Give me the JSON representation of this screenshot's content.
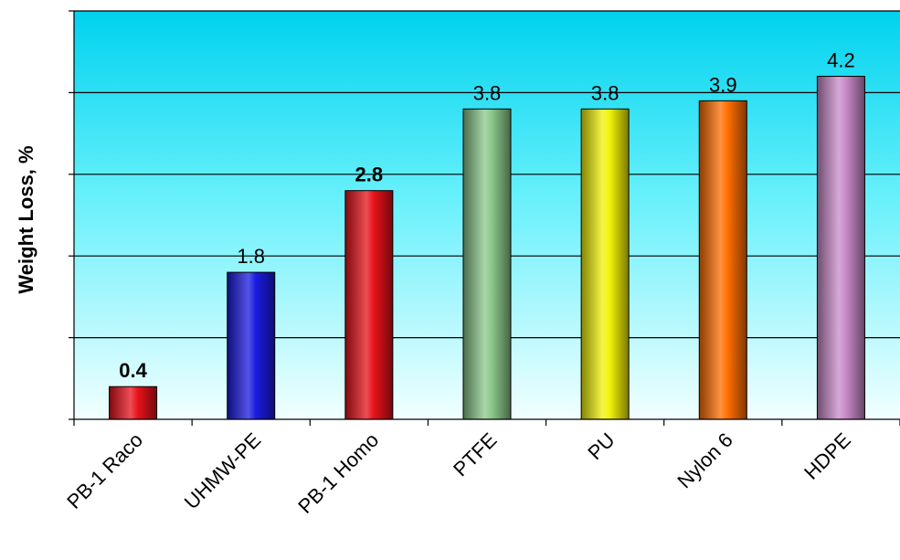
{
  "chart_data": {
    "type": "bar",
    "title": "",
    "xlabel": "",
    "ylabel": "Weight Loss, %",
    "ylim": [
      0,
      5
    ],
    "y_gridlines": [
      1,
      2,
      3,
      4,
      5
    ],
    "y_tick_labels_shown": false,
    "grid": "horizontal",
    "legend": "none",
    "background": "cyan-gradient",
    "categories": [
      "PB-1 Raco",
      "UHMW-PE",
      "PB-1 Homo",
      "PTFE",
      "PU",
      "Nylon 6",
      "HDPE"
    ],
    "values": [
      0.4,
      1.8,
      2.8,
      3.8,
      3.8,
      3.9,
      4.2
    ],
    "data_labels": [
      "0.4",
      "1.8",
      "2.8",
      "3.8",
      "3.8",
      "3.9",
      "4.2"
    ],
    "bold_labels": [
      true,
      false,
      true,
      false,
      false,
      false,
      false
    ],
    "colors": [
      "#e8121b",
      "#1b1be3",
      "#e8121b",
      "#8cc88c",
      "#f2f20a",
      "#ff6e00",
      "#c98bc9"
    ]
  }
}
